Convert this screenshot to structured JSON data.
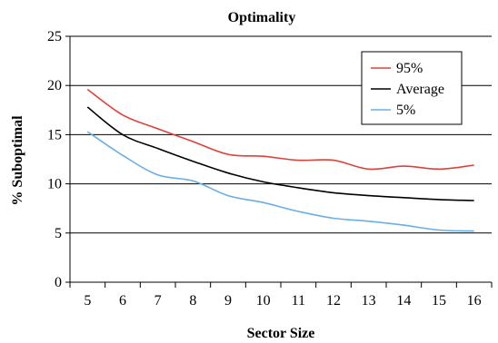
{
  "chart_data": {
    "type": "line",
    "title": "Optimality",
    "xlabel": "Sector Size",
    "ylabel": "% Suboptimal",
    "x": [
      5,
      6,
      7,
      8,
      9,
      10,
      11,
      12,
      13,
      14,
      15,
      16
    ],
    "xlim": [
      4.5,
      16.5
    ],
    "ylim": [
      0,
      25
    ],
    "yticks": [
      0,
      5,
      10,
      15,
      20,
      25
    ],
    "grid": "horizontal",
    "legend": "top-right",
    "series": [
      {
        "name": "95%",
        "color": "#e0403a",
        "values": [
          19.6,
          17.0,
          15.6,
          14.3,
          13.0,
          12.8,
          12.4,
          12.4,
          11.5,
          11.8,
          11.5,
          11.9
        ]
      },
      {
        "name": "Average",
        "color": "#000000",
        "values": [
          17.8,
          15.0,
          13.6,
          12.3,
          11.1,
          10.2,
          9.6,
          9.1,
          8.8,
          8.6,
          8.4,
          8.3
        ]
      },
      {
        "name": "5%",
        "color": "#6aaee6",
        "values": [
          15.3,
          12.9,
          10.9,
          10.3,
          8.8,
          8.1,
          7.2,
          6.5,
          6.2,
          5.8,
          5.3,
          5.2
        ]
      }
    ]
  }
}
